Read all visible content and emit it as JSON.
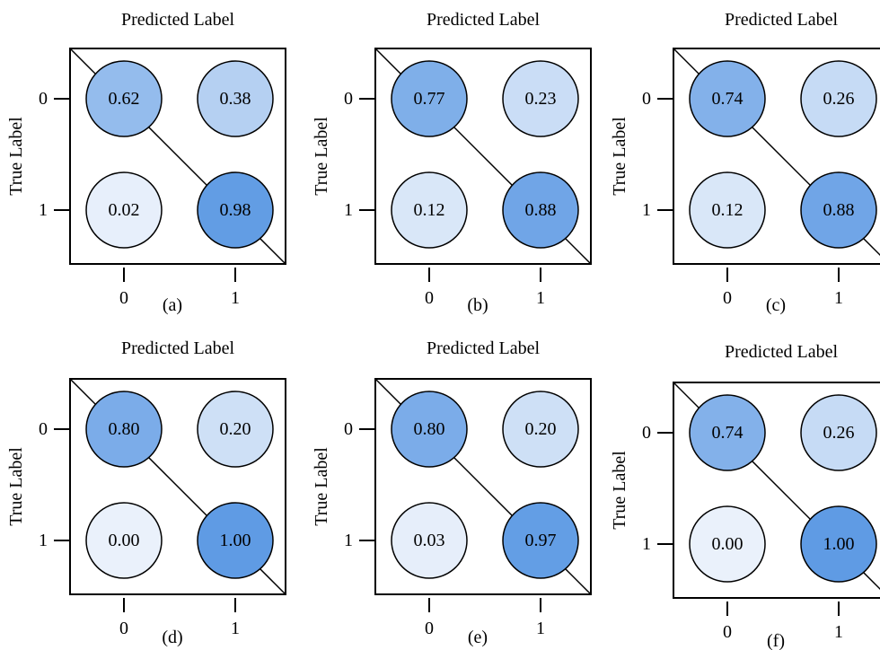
{
  "chart_data": [
    {
      "type": "heatmap",
      "title": "Predicted Label",
      "ylabel": "True Label",
      "caption": "(a)",
      "x_ticks": [
        "0",
        "1"
      ],
      "y_ticks": [
        "0",
        "1"
      ],
      "values": [
        [
          "0.62",
          "0.38"
        ],
        [
          "0.02",
          "0.98"
        ]
      ]
    },
    {
      "type": "heatmap",
      "title": "Predicted Label",
      "ylabel": "True Label",
      "caption": "(b)",
      "x_ticks": [
        "0",
        "1"
      ],
      "y_ticks": [
        "0",
        "1"
      ],
      "values": [
        [
          "0.77",
          "0.23"
        ],
        [
          "0.12",
          "0.88"
        ]
      ]
    },
    {
      "type": "heatmap",
      "title": "Predicted Label",
      "ylabel": "True Label",
      "caption": "(c)",
      "x_ticks": [
        "0",
        "1"
      ],
      "y_ticks": [
        "0",
        "1"
      ],
      "values": [
        [
          "0.74",
          "0.26"
        ],
        [
          "0.12",
          "0.88"
        ]
      ]
    },
    {
      "type": "heatmap",
      "title": "Predicted Label",
      "ylabel": "True Label",
      "caption": "(d)",
      "x_ticks": [
        "0",
        "1"
      ],
      "y_ticks": [
        "0",
        "1"
      ],
      "values": [
        [
          "0.80",
          "0.20"
        ],
        [
          "0.00",
          "1.00"
        ]
      ]
    },
    {
      "type": "heatmap",
      "title": "Predicted Label",
      "ylabel": "True Label",
      "caption": "(e)",
      "x_ticks": [
        "0",
        "1"
      ],
      "y_ticks": [
        "0",
        "1"
      ],
      "values": [
        [
          "0.80",
          "0.20"
        ],
        [
          "0.03",
          "0.97"
        ]
      ]
    },
    {
      "type": "heatmap",
      "title": "Predicted Label",
      "ylabel": "True Label",
      "caption": "(f)",
      "x_ticks": [
        "0",
        "1"
      ],
      "y_ticks": [
        "0",
        "1"
      ],
      "values": [
        [
          "0.74",
          "0.26"
        ],
        [
          "0.00",
          "1.00"
        ]
      ]
    }
  ],
  "colors": {
    "cell_low": "#EAF1FB",
    "cell_high": "#5F9BE4",
    "stroke": "#000000"
  }
}
